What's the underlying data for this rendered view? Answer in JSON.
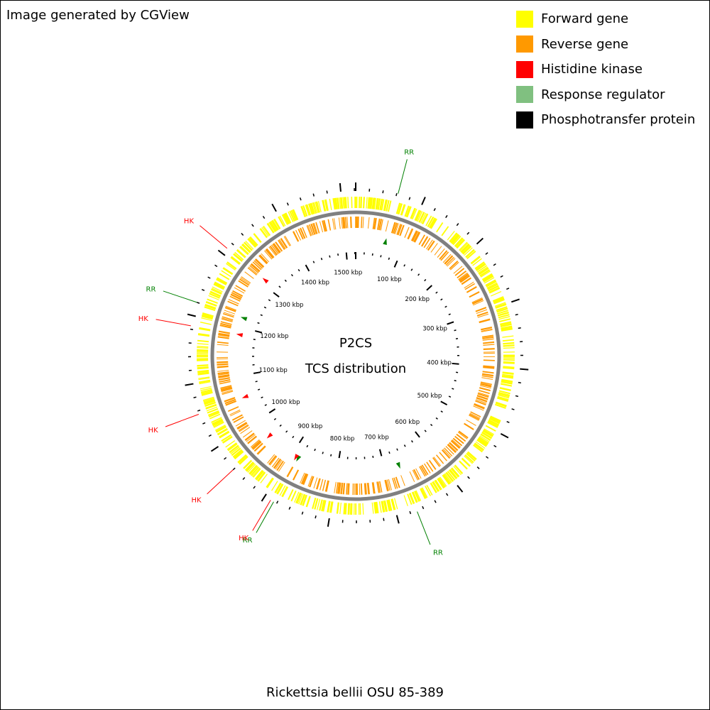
{
  "credit": "Image generated by CGView",
  "legend": [
    {
      "label": "Forward gene",
      "color": "#ffff00"
    },
    {
      "label": "Reverse gene",
      "color": "#ff9900"
    },
    {
      "label": "Histidine kinase",
      "color": "#ff0000"
    },
    {
      "label": "Response regulator",
      "color": "#80c080"
    },
    {
      "label": "Phosphotransfer protein",
      "color": "#000000"
    }
  ],
  "center": {
    "line1": "P2CS",
    "line2": "TCS distribution"
  },
  "genome": {
    "name": "Rickettsia bellii OSU 85-389",
    "length_kbp": 1522
  },
  "ruler_labels": [
    "100 kbp",
    "200 kbp",
    "300 kbp",
    "400 kbp",
    "500 kbp",
    "600 kbp",
    "700 kbp",
    "800 kbp",
    "900 kbp",
    "1000 kbp",
    "1100 kbp",
    "1200 kbp",
    "1300 kbp",
    "1400 kbp",
    "1500 kbp"
  ],
  "features": [
    {
      "type": "RR",
      "position_kbp": 62
    },
    {
      "type": "RR",
      "position_kbp": 670
    },
    {
      "type": "RR",
      "position_kbp": 885
    },
    {
      "type": "HK",
      "position_kbp": 890
    },
    {
      "type": "HK",
      "position_kbp": 960
    },
    {
      "type": "HK",
      "position_kbp": 1055
    },
    {
      "type": "HK",
      "position_kbp": 1185
    },
    {
      "type": "RR",
      "position_kbp": 1220
    },
    {
      "type": "HK",
      "position_kbp": 1310
    }
  ],
  "colors": {
    "forward": "#ffff00",
    "reverse": "#ff9900",
    "hk": "#ff0000",
    "rr": "#008000",
    "backbone": "#808080",
    "ticks": "#000000"
  }
}
